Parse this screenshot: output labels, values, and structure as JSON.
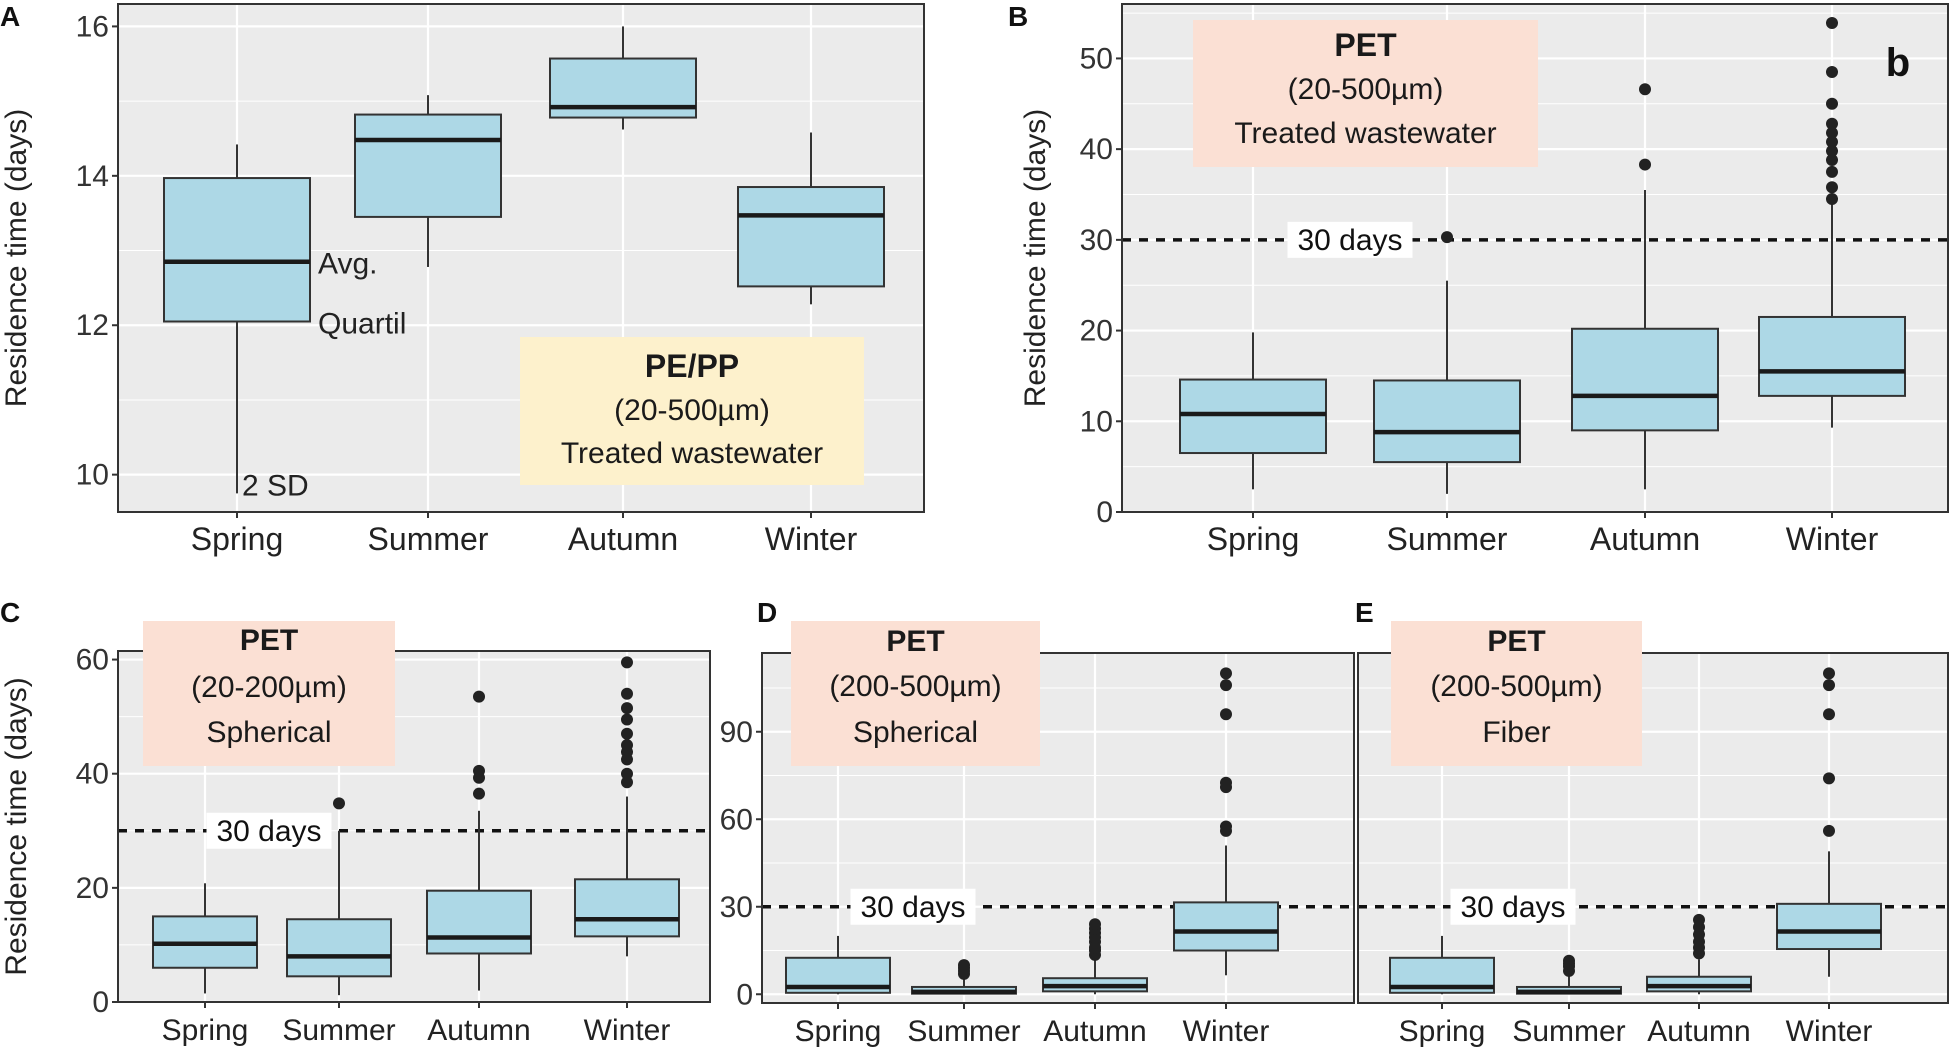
{
  "figure": {
    "season_labels": [
      "Spring",
      "Summer",
      "Autumn",
      "Winter"
    ],
    "ylabel": "Residence time (days)",
    "colors": {
      "panel_bg": "#ebebeb",
      "grid": "#ffffff",
      "box_fill": "#add8e6",
      "box_stroke": "#333333",
      "legend_pet": "#fbe0d4",
      "legend_pe": "#fdf1cc",
      "outlier": "#222222"
    }
  },
  "chart_data": [
    {
      "panel": "A",
      "type": "box",
      "ylim": [
        9.5,
        16.3
      ],
      "yticks": [
        10,
        12,
        14,
        16
      ],
      "ylabel": "Residence time (days)",
      "categories": [
        "Spring",
        "Summer",
        "Autumn",
        "Winter"
      ],
      "boxes": [
        {
          "q1": 12.05,
          "median": 12.85,
          "q3": 13.97,
          "whisker_low": 9.75,
          "whisker_high": 14.42,
          "outliers": []
        },
        {
          "q1": 13.45,
          "median": 14.48,
          "q3": 14.82,
          "whisker_low": 12.78,
          "whisker_high": 15.08,
          "outliers": []
        },
        {
          "q1": 14.78,
          "median": 14.92,
          "q3": 15.57,
          "whisker_low": 14.62,
          "whisker_high": 16.0,
          "outliers": []
        },
        {
          "q1": 12.52,
          "median": 13.47,
          "q3": 13.85,
          "whisker_low": 12.28,
          "whisker_high": 14.58,
          "outliers": []
        }
      ],
      "legend": {
        "title": "PE/PP",
        "size": "(20-500µm)",
        "desc": "Treated wastewater"
      },
      "annotations": {
        "avg": "Avg.",
        "quartil": "Quartil",
        "sd": "2 SD"
      }
    },
    {
      "panel": "B",
      "corner_label": "b",
      "type": "box",
      "ylim": [
        0,
        56
      ],
      "yticks": [
        0,
        10,
        20,
        30,
        40,
        50
      ],
      "ylabel": "Residence time (days)",
      "categories": [
        "Spring",
        "Summer",
        "Autumn",
        "Winter"
      ],
      "threshold": 30,
      "threshold_label": "30 days",
      "boxes": [
        {
          "q1": 6.5,
          "median": 10.8,
          "q3": 14.6,
          "whisker_low": 2.5,
          "whisker_high": 19.8,
          "outliers": []
        },
        {
          "q1": 5.5,
          "median": 8.8,
          "q3": 14.5,
          "whisker_low": 2.0,
          "whisker_high": 25.5,
          "outliers": [
            30.3
          ]
        },
        {
          "q1": 9.0,
          "median": 12.8,
          "q3": 20.2,
          "whisker_low": 2.5,
          "whisker_high": 35.5,
          "outliers": [
            38.3,
            46.6
          ]
        },
        {
          "q1": 12.8,
          "median": 15.5,
          "q3": 21.5,
          "whisker_low": 9.3,
          "whisker_high": 34.0,
          "outliers": [
            34.5,
            35.8,
            37.5,
            38.8,
            39.8,
            40.8,
            41.8,
            42.8,
            45.0,
            48.5,
            53.9
          ]
        }
      ],
      "legend": {
        "title": "PET",
        "size": "(20-500µm)",
        "desc": "Treated wastewater"
      }
    },
    {
      "panel": "C",
      "type": "box",
      "ylim": [
        0,
        61.5
      ],
      "yticks": [
        0,
        20,
        40,
        60
      ],
      "ylabel": "Residence time (days)",
      "categories": [
        "Spring",
        "Summer",
        "Autumn",
        "Winter"
      ],
      "threshold": 30,
      "threshold_label": "30 days",
      "boxes": [
        {
          "q1": 6.0,
          "median": 10.2,
          "q3": 15.0,
          "whisker_low": 1.5,
          "whisker_high": 20.8,
          "outliers": []
        },
        {
          "q1": 4.5,
          "median": 8.0,
          "q3": 14.5,
          "whisker_low": 1.2,
          "whisker_high": 30.0,
          "outliers": [
            34.8
          ]
        },
        {
          "q1": 8.5,
          "median": 11.3,
          "q3": 19.5,
          "whisker_low": 2.0,
          "whisker_high": 33.5,
          "outliers": [
            36.5,
            39.3,
            40.5,
            53.5
          ]
        },
        {
          "q1": 11.5,
          "median": 14.5,
          "q3": 21.5,
          "whisker_low": 8.0,
          "whisker_high": 36.0,
          "outliers": [
            38.5,
            40.0,
            42.5,
            43.8,
            45.0,
            47.0,
            49.5,
            51.5,
            54.0,
            59.5
          ]
        }
      ],
      "legend": {
        "title": "PET",
        "size": "(20-200µm)",
        "desc": "Spherical"
      }
    },
    {
      "panel": "D",
      "type": "box",
      "ylim": [
        -3,
        117
      ],
      "yticks": [
        0,
        30,
        60,
        90
      ],
      "categories": [
        "Spring",
        "Summer",
        "Autumn",
        "Winter"
      ],
      "threshold": 30,
      "threshold_label": "30 days",
      "boxes": [
        {
          "q1": 0.5,
          "median": 2.5,
          "q3": 12.5,
          "whisker_low": 0,
          "whisker_high": 20.0,
          "outliers": []
        },
        {
          "q1": 0.2,
          "median": 0.8,
          "q3": 2.5,
          "whisker_low": 0,
          "whisker_high": 6.0,
          "outliers": [
            7.0,
            8.0,
            9.0,
            10.0
          ]
        },
        {
          "q1": 1.0,
          "median": 2.8,
          "q3": 5.5,
          "whisker_low": 0,
          "whisker_high": 12.0,
          "outliers": [
            13.5,
            15.0,
            16.0,
            18.0,
            19.5,
            21.0,
            22.5,
            24.0
          ]
        },
        {
          "q1": 15.0,
          "median": 21.5,
          "q3": 31.5,
          "whisker_low": 6.5,
          "whisker_high": 51.0,
          "outliers": [
            56.0,
            57.5,
            71.0,
            72.5,
            96.0,
            106.0,
            110.0
          ]
        }
      ],
      "legend": {
        "title": "PET",
        "size": "(200-500µm)",
        "desc": "Spherical"
      }
    },
    {
      "panel": "E",
      "type": "box",
      "ylim": [
        -3,
        117
      ],
      "yticks": [],
      "categories": [
        "Spring",
        "Summer",
        "Autumn",
        "Winter"
      ],
      "threshold": 30,
      "threshold_label": "30 days",
      "boxes": [
        {
          "q1": 0.5,
          "median": 2.5,
          "q3": 12.5,
          "whisker_low": 0,
          "whisker_high": 20.0,
          "outliers": []
        },
        {
          "q1": 0.2,
          "median": 0.8,
          "q3": 2.5,
          "whisker_low": 0,
          "whisker_high": 7.0,
          "outliers": [
            8.0,
            9.5,
            10.5,
            11.5
          ]
        },
        {
          "q1": 1.0,
          "median": 2.8,
          "q3": 6.0,
          "whisker_low": 0,
          "whisker_high": 12.0,
          "outliers": [
            14.0,
            16.0,
            18.0,
            20.5,
            23.0,
            25.5
          ]
        },
        {
          "q1": 15.5,
          "median": 21.5,
          "q3": 31.0,
          "whisker_low": 6.0,
          "whisker_high": 49.0,
          "outliers": [
            56.0,
            74.0,
            96.0,
            106.0,
            110.0
          ]
        }
      ],
      "legend": {
        "title": "PET",
        "size": "(200-500µm)",
        "desc": "Fiber"
      }
    }
  ]
}
